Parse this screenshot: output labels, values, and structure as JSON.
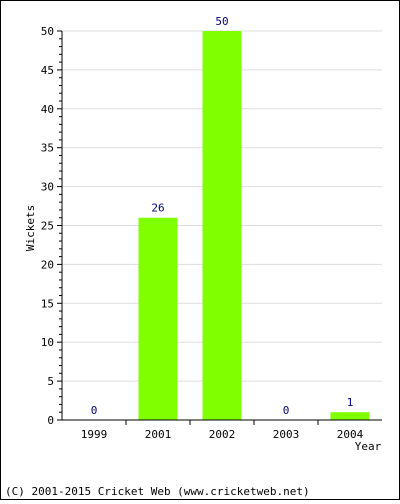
{
  "chart_data": {
    "type": "bar",
    "categories": [
      "1999",
      "2001",
      "2002",
      "2003",
      "2004"
    ],
    "values": [
      0,
      26,
      50,
      0,
      1
    ],
    "title": "",
    "xlabel": "Year",
    "ylabel": "Wickets",
    "ylim": [
      0,
      50
    ],
    "yticks": [
      "0",
      "5",
      "10",
      "15",
      "20",
      "25",
      "30",
      "35",
      "40",
      "45",
      "50"
    ],
    "data_labels": [
      "0",
      "26",
      "50",
      "0",
      "1"
    ],
    "grid": true,
    "legend": "none",
    "colors": {
      "bar": "#80ff00",
      "data_label": "#000080",
      "grid": "#dddddd",
      "axis": "#000000"
    }
  },
  "footer": {
    "copyright": "(C) 2001-2015 Cricket Web (www.cricketweb.net)"
  }
}
